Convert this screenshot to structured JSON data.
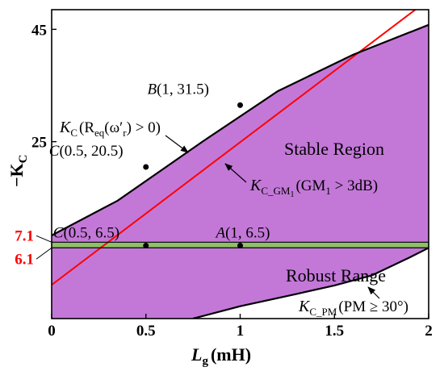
{
  "chart_data": {
    "type": "area",
    "xlabel": "L",
    "xlabel_sub": "g",
    "xlabel_unit": "(mH)",
    "ylabel": "−K",
    "ylabel_sub": "C",
    "xlim": [
      0,
      2
    ],
    "ylim": [
      -6.5,
      48.5
    ],
    "xticks": [
      "0",
      "0.5",
      "1",
      "1.5",
      "2"
    ],
    "yticks": [
      "25",
      "45"
    ],
    "special_yticks": [
      "7.1",
      "6.1"
    ],
    "grid": false,
    "series": [
      {
        "name": "",
        "color": "#ff0000",
        "x": [
          0,
          2
        ],
        "y": [
          -0.5,
          50.3
        ]
      },
      {
        "name": "",
        "color": "#000000",
        "x": [
          0,
          0.35,
          0.8,
          1.2,
          1.6,
          2.0
        ],
        "y": [
          8.3,
          14.5,
          25.0,
          34.0,
          40.5,
          45.8
        ]
      },
      {
        "name": "",
        "color": "#000000",
        "x": [
          0.75,
          1.0,
          1.3,
          1.5,
          1.7,
          1.9,
          2.0
        ],
        "y": [
          -6.5,
          -4.3,
          -2.1,
          -0.6,
          1.2,
          4.4,
          6.1
        ]
      }
    ],
    "regions": {
      "stable_color": "#c378d8",
      "robust_band": [
        6.1,
        7.1
      ],
      "robust_color": "#8fc067"
    },
    "points": [
      {
        "name": "B",
        "coords": "(1, 31.5)",
        "x": 1,
        "y": 31.5
      },
      {
        "name": "C",
        "coords": "(0.5, 20.5)",
        "x": 0.5,
        "y": 20.5
      },
      {
        "name": "C",
        "coords": "(0.5, 6.5)",
        "x": 0.5,
        "y": 6.5
      },
      {
        "name": "A",
        "coords": "(1, 6.5)",
        "x": 1,
        "y": 6.5
      }
    ],
    "annotations": {
      "stable_region": "Stable Region",
      "robust_range": "Robust Range",
      "red_curve_label": "K",
      "red_curve_sub": "C",
      "red_curve_cond": "(R",
      "red_curve_cond_sub": "eq",
      "red_curve_cond_rest": "(ω′",
      "red_curve_cond_sub2": "r",
      "red_curve_cond_end": ") > 0)",
      "gm_curve_label": "K",
      "gm_curve_sub": "C_GM",
      "gm_curve_sub2": "1",
      "gm_curve_cond": "(GM",
      "gm_curve_cond_sub": "1",
      "gm_curve_cond_end": " > 3dB)",
      "pm_curve_label": "K",
      "pm_curve_sub": "C_PM",
      "pm_curve_cond": "(PM ≥ 30°)"
    }
  }
}
